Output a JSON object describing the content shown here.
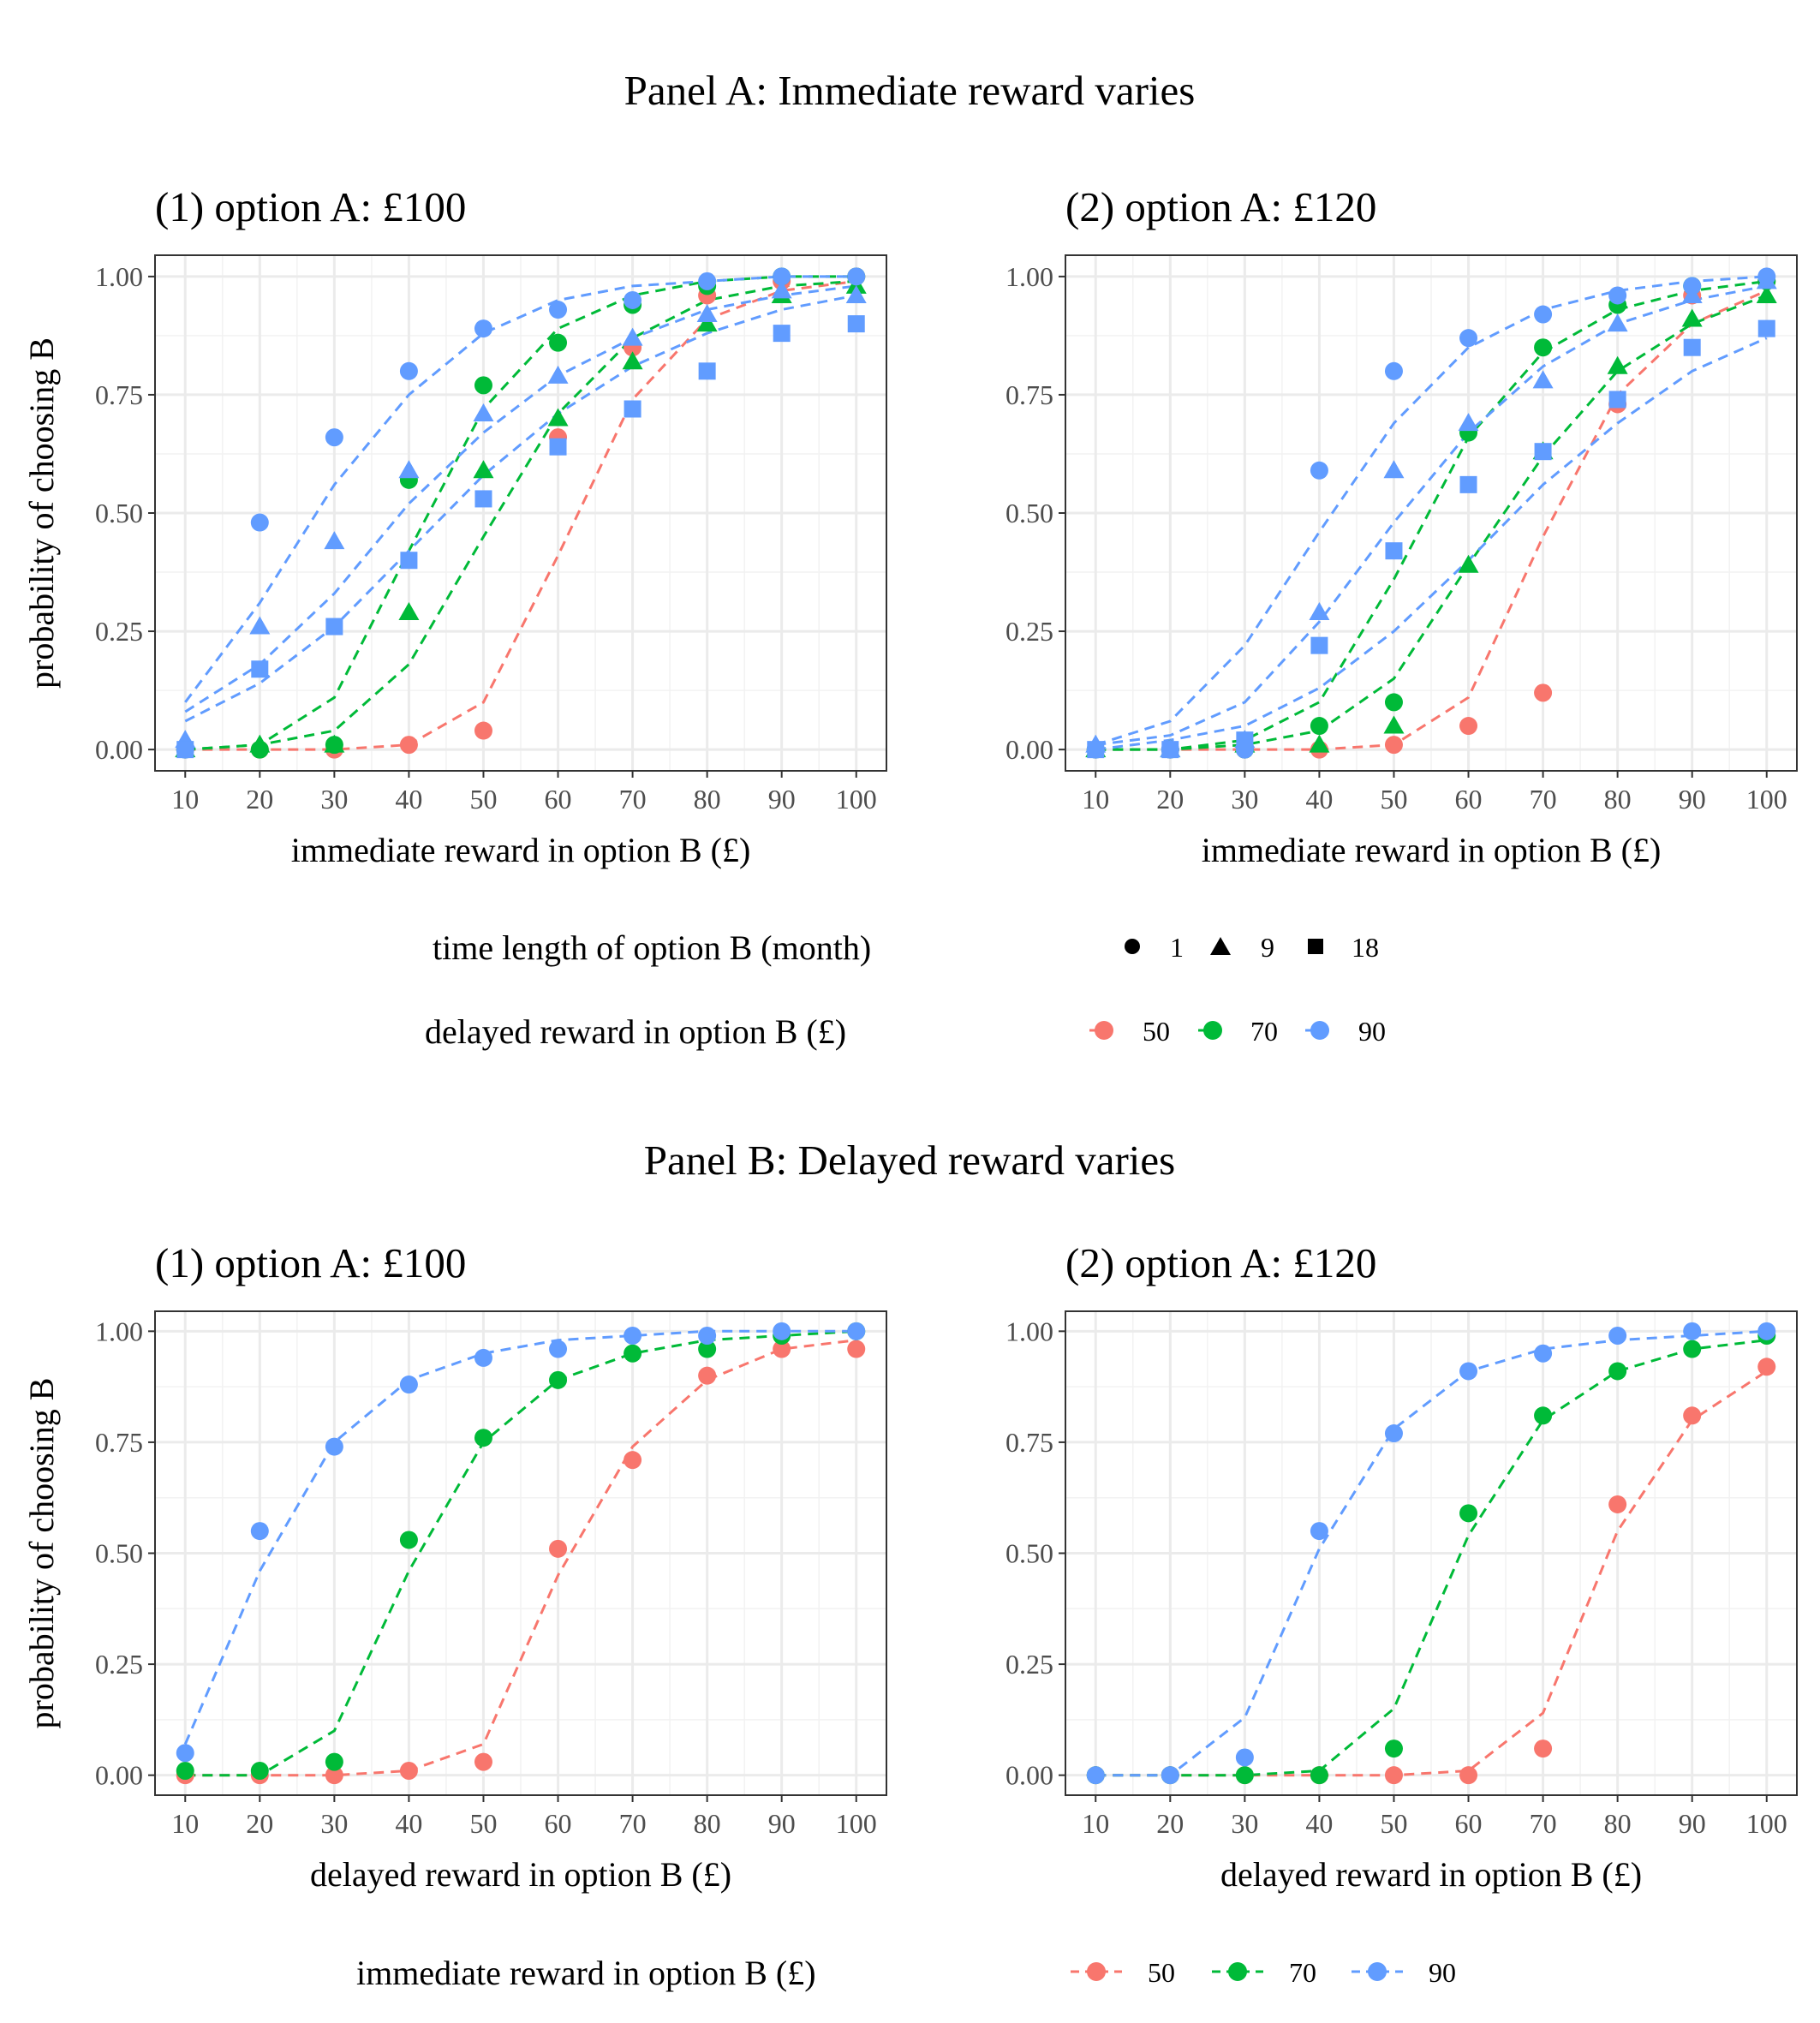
{
  "colors": {
    "50": "#F8766D",
    "70": "#00BA38",
    "90": "#619CFF"
  },
  "panel_a": {
    "title": "Panel A: Immediate reward varies",
    "legend_time_title": "time length of option B (month)",
    "legend_time_items": [
      "1",
      "9",
      "18"
    ],
    "legend_reward_title": "delayed reward in option B (£)",
    "legend_reward_items": [
      "50",
      "70",
      "90"
    ]
  },
  "panel_b": {
    "title": "Panel B: Delayed reward varies",
    "legend_title": "immediate reward in option B (£)",
    "legend_items": [
      "50",
      "70",
      "90"
    ]
  },
  "chart_data": [
    {
      "type": "scatter",
      "title": "(1) option A: £100",
      "xlabel": "immediate reward in option B (£)",
      "ylabel": "probability of choosing B",
      "xlim": [
        10,
        100
      ],
      "ylim": [
        0,
        1
      ],
      "x_ticks": [
        "10",
        "20",
        "30",
        "40",
        "50",
        "60",
        "70",
        "80",
        "90",
        "100"
      ],
      "y_ticks": [
        "0.00",
        "0.25",
        "0.50",
        "0.75",
        "1.00"
      ],
      "grid": true,
      "x": [
        10,
        20,
        30,
        40,
        50,
        60,
        70,
        80,
        90,
        100
      ],
      "series": [
        {
          "reward": "50",
          "time": "1",
          "values": [
            0.0,
            0.0,
            0.0,
            0.01,
            0.04,
            0.66,
            0.85,
            0.96,
            0.99,
            1.0
          ],
          "fit": [
            0.0,
            0.0,
            0.0,
            0.01,
            0.1,
            0.41,
            0.74,
            0.91,
            0.97,
            0.99
          ]
        },
        {
          "reward": "70",
          "time": "1",
          "values": [
            0.0,
            0.0,
            0.01,
            0.57,
            0.77,
            0.86,
            0.94,
            0.98,
            1.0,
            1.0
          ],
          "fit": [
            0.0,
            0.01,
            0.11,
            0.42,
            0.72,
            0.89,
            0.96,
            0.99,
            1.0,
            1.0
          ]
        },
        {
          "reward": "70",
          "time": "9",
          "values": [
            0.0,
            0.01,
            0.01,
            0.29,
            0.59,
            0.7,
            0.82,
            0.9,
            0.96,
            0.98
          ],
          "fit": [
            0.0,
            0.01,
            0.04,
            0.18,
            0.45,
            0.71,
            0.87,
            0.95,
            0.98,
            0.99
          ]
        },
        {
          "reward": "90",
          "time": "1",
          "values": [
            0.0,
            0.48,
            0.66,
            0.8,
            0.89,
            0.93,
            0.95,
            0.99,
            1.0,
            1.0
          ],
          "fit": [
            0.1,
            0.31,
            0.56,
            0.75,
            0.88,
            0.95,
            0.98,
            0.99,
            1.0,
            1.0
          ]
        },
        {
          "reward": "90",
          "time": "9",
          "values": [
            0.02,
            0.26,
            0.44,
            0.59,
            0.71,
            0.79,
            0.87,
            0.92,
            0.97,
            0.96
          ],
          "fit": [
            0.08,
            0.18,
            0.33,
            0.52,
            0.67,
            0.79,
            0.87,
            0.93,
            0.96,
            0.98
          ]
        },
        {
          "reward": "90",
          "time": "18",
          "values": [
            0.0,
            0.17,
            0.26,
            0.4,
            0.53,
            0.64,
            0.72,
            0.8,
            0.88,
            0.9
          ],
          "fit": [
            0.06,
            0.14,
            0.26,
            0.42,
            0.58,
            0.71,
            0.81,
            0.88,
            0.93,
            0.96
          ]
        }
      ]
    },
    {
      "type": "scatter",
      "title": "(2) option A: £120",
      "xlabel": "immediate reward in option B (£)",
      "ylabel": "",
      "xlim": [
        10,
        100
      ],
      "ylim": [
        0,
        1
      ],
      "x_ticks": [
        "10",
        "20",
        "30",
        "40",
        "50",
        "60",
        "70",
        "80",
        "90",
        "100"
      ],
      "y_ticks": [
        "0.00",
        "0.25",
        "0.50",
        "0.75",
        "1.00"
      ],
      "grid": true,
      "x": [
        10,
        20,
        30,
        40,
        50,
        60,
        70,
        80,
        90,
        100
      ],
      "series": [
        {
          "reward": "50",
          "time": "1",
          "values": [
            0.0,
            0.0,
            0.0,
            0.0,
            0.01,
            0.05,
            0.12,
            0.73,
            0.96,
            0.99
          ],
          "fit": [
            0.0,
            0.0,
            0.0,
            0.0,
            0.01,
            0.11,
            0.45,
            0.75,
            0.9,
            0.97
          ]
        },
        {
          "reward": "70",
          "time": "1",
          "values": [
            0.0,
            0.0,
            0.0,
            0.05,
            0.1,
            0.67,
            0.85,
            0.94,
            0.98,
            0.99
          ],
          "fit": [
            0.0,
            0.0,
            0.02,
            0.1,
            0.36,
            0.66,
            0.84,
            0.93,
            0.97,
            0.99
          ]
        },
        {
          "reward": "70",
          "time": "9",
          "values": [
            0.0,
            0.0,
            0.01,
            0.01,
            0.05,
            0.39,
            0.63,
            0.81,
            0.91,
            0.96
          ],
          "fit": [
            0.0,
            0.0,
            0.01,
            0.04,
            0.15,
            0.39,
            0.62,
            0.8,
            0.9,
            0.96
          ]
        },
        {
          "reward": "90",
          "time": "1",
          "values": [
            0.0,
            0.0,
            0.0,
            0.59,
            0.8,
            0.87,
            0.92,
            0.96,
            0.98,
            1.0
          ],
          "fit": [
            0.01,
            0.06,
            0.22,
            0.46,
            0.69,
            0.85,
            0.93,
            0.97,
            0.99,
            1.0
          ]
        },
        {
          "reward": "90",
          "time": "9",
          "values": [
            0.01,
            0.0,
            0.02,
            0.29,
            0.59,
            0.69,
            0.78,
            0.9,
            0.96,
            0.99
          ],
          "fit": [
            0.01,
            0.03,
            0.1,
            0.27,
            0.48,
            0.67,
            0.81,
            0.9,
            0.95,
            0.98
          ]
        },
        {
          "reward": "90",
          "time": "18",
          "values": [
            0.0,
            0.0,
            0.02,
            0.22,
            0.42,
            0.56,
            0.63,
            0.74,
            0.85,
            0.89
          ],
          "fit": [
            0.0,
            0.02,
            0.05,
            0.13,
            0.25,
            0.4,
            0.56,
            0.69,
            0.8,
            0.87
          ]
        }
      ]
    },
    {
      "type": "scatter",
      "title": "(1) option A: £100",
      "xlabel": "delayed reward in option B (£)",
      "ylabel": "probability of choosing B",
      "xlim": [
        10,
        100
      ],
      "ylim": [
        0,
        1
      ],
      "x_ticks": [
        "10",
        "20",
        "30",
        "40",
        "50",
        "60",
        "70",
        "80",
        "90",
        "100"
      ],
      "y_ticks": [
        "0.00",
        "0.25",
        "0.50",
        "0.75",
        "1.00"
      ],
      "grid": true,
      "x": [
        10,
        20,
        30,
        40,
        50,
        60,
        70,
        80,
        90,
        100
      ],
      "series": [
        {
          "reward": "50",
          "values": [
            0.0,
            0.0,
            0.0,
            0.01,
            0.03,
            0.51,
            0.71,
            0.9,
            0.96,
            0.96
          ],
          "fit": [
            0.0,
            0.0,
            0.0,
            0.01,
            0.07,
            0.45,
            0.74,
            0.89,
            0.96,
            0.98
          ]
        },
        {
          "reward": "70",
          "values": [
            0.01,
            0.01,
            0.03,
            0.53,
            0.76,
            0.89,
            0.95,
            0.96,
            0.99,
            1.0
          ],
          "fit": [
            0.0,
            0.0,
            0.1,
            0.46,
            0.75,
            0.89,
            0.95,
            0.98,
            0.99,
            1.0
          ]
        },
        {
          "reward": "90",
          "values": [
            0.05,
            0.55,
            0.74,
            0.88,
            0.94,
            0.96,
            0.99,
            0.99,
            1.0,
            1.0
          ],
          "fit": [
            0.07,
            0.46,
            0.75,
            0.89,
            0.95,
            0.98,
            0.99,
            1.0,
            1.0,
            1.0
          ]
        }
      ]
    },
    {
      "type": "scatter",
      "title": "(2) option A: £120",
      "xlabel": "delayed reward in option B (£)",
      "ylabel": "",
      "xlim": [
        10,
        100
      ],
      "ylim": [
        0,
        1
      ],
      "x_ticks": [
        "10",
        "20",
        "30",
        "40",
        "50",
        "60",
        "70",
        "80",
        "90",
        "100"
      ],
      "y_ticks": [
        "0.00",
        "0.25",
        "0.50",
        "0.75",
        "1.00"
      ],
      "grid": true,
      "x": [
        10,
        20,
        30,
        40,
        50,
        60,
        70,
        80,
        90,
        100
      ],
      "series": [
        {
          "reward": "50",
          "values": [
            0.0,
            0.0,
            0.0,
            0.0,
            0.0,
            0.0,
            0.06,
            0.61,
            0.81,
            0.92
          ],
          "fit": [
            0.0,
            0.0,
            0.0,
            0.0,
            0.0,
            0.01,
            0.14,
            0.55,
            0.8,
            0.91
          ]
        },
        {
          "reward": "70",
          "values": [
            0.0,
            0.0,
            0.0,
            0.0,
            0.06,
            0.59,
            0.81,
            0.91,
            0.96,
            0.99
          ],
          "fit": [
            0.0,
            0.0,
            0.0,
            0.01,
            0.15,
            0.54,
            0.8,
            0.91,
            0.96,
            0.98
          ]
        },
        {
          "reward": "90",
          "values": [
            0.0,
            0.0,
            0.04,
            0.55,
            0.77,
            0.91,
            0.95,
            0.99,
            1.0,
            1.0
          ],
          "fit": [
            0.0,
            0.0,
            0.13,
            0.51,
            0.78,
            0.91,
            0.96,
            0.98,
            0.99,
            1.0
          ]
        }
      ]
    }
  ]
}
